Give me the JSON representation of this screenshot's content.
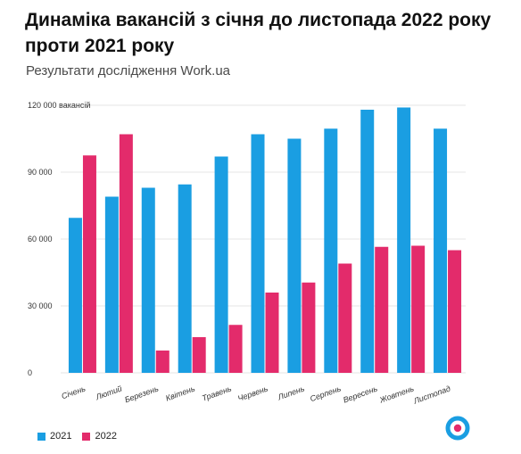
{
  "header": {
    "title": "Динаміка вакансій з січня до листопада 2022 року проти 2021 року",
    "subtitle": "Результати дослідження Work.ua"
  },
  "colors": {
    "series_2021": "#1a9ee2",
    "series_2022": "#e32b6b",
    "grid": "#e6e6e6",
    "logo_ring": "#1a9ee2",
    "logo_dot": "#e32b6b"
  },
  "logo": {
    "icon": "work-ua-logo-icon"
  },
  "chart_data": {
    "type": "bar",
    "title": "Динаміка вакансій з січня до листопада 2022 року проти 2021 року",
    "subtitle": "Результати дослідження Work.ua",
    "categories": [
      "Січень",
      "Лютий",
      "Березень",
      "Квітень",
      "Травень",
      "Червень",
      "Липень",
      "Серпень",
      "Вересень",
      "Жовтень",
      "Листопад"
    ],
    "series": [
      {
        "name": "2021",
        "values": [
          69500,
          79000,
          83000,
          84500,
          97000,
          107000,
          105000,
          109500,
          118000,
          119000,
          109500
        ]
      },
      {
        "name": "2022",
        "values": [
          97500,
          107000,
          10000,
          16000,
          21500,
          36000,
          40500,
          49000,
          56500,
          57000,
          55000
        ]
      }
    ],
    "ylim": [
      0,
      120000
    ],
    "yticks": [
      {
        "value": 0,
        "label": "0"
      },
      {
        "value": 30000,
        "label": "30 000"
      },
      {
        "value": 60000,
        "label": "60 000"
      },
      {
        "value": 90000,
        "label": "90 000"
      },
      {
        "value": 120000,
        "label": "120 000 вакансій"
      }
    ],
    "xlabel": "",
    "ylabel": "",
    "grid": true,
    "legend": "bottom-left"
  }
}
